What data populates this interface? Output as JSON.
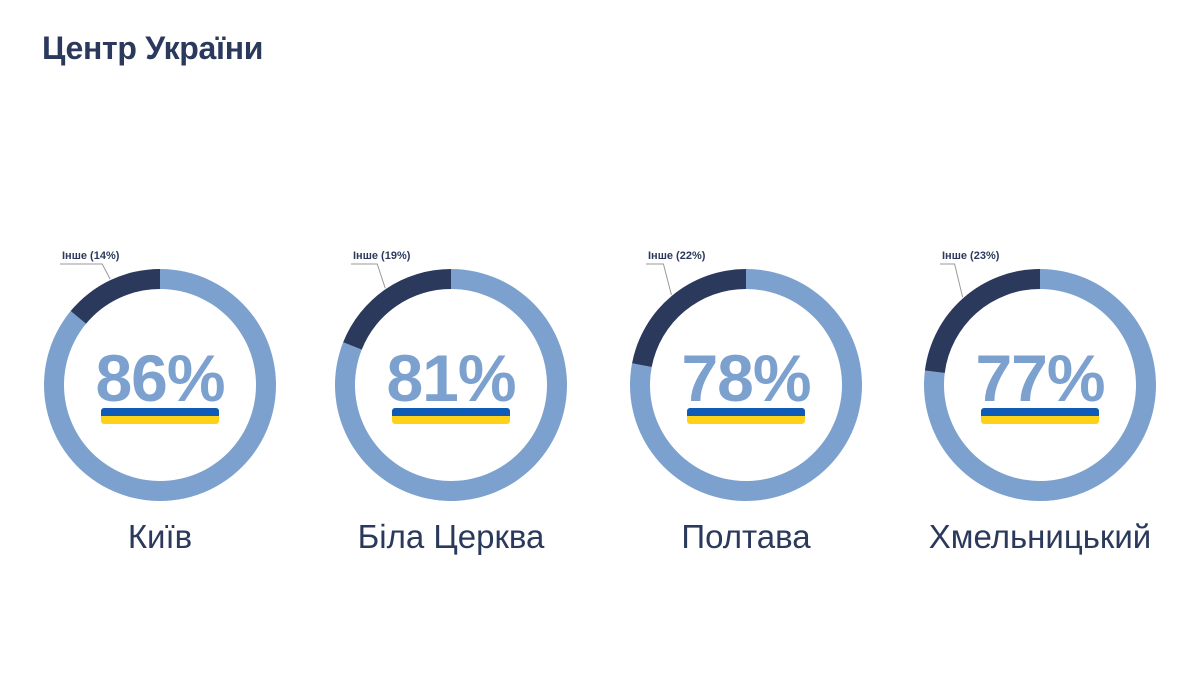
{
  "title": "Центр України",
  "colors": {
    "main": "#7da1ce",
    "other": "#2b3a5c",
    "flag_blue": "#0f5bb5",
    "flag_yellow": "#ffd21a",
    "title": "#2b3a5c"
  },
  "chart_data": [
    {
      "type": "pie",
      "city": "Київ",
      "slices": [
        {
          "label": "",
          "value": 86
        },
        {
          "label": "Інше (14%)",
          "value": 14
        }
      ],
      "center_label": "86%",
      "other_label": "Інше (14%)"
    },
    {
      "type": "pie",
      "city": "Біла Церква",
      "slices": [
        {
          "label": "",
          "value": 81
        },
        {
          "label": "Інше (19%)",
          "value": 19
        }
      ],
      "center_label": "81%",
      "other_label": "Інше (19%)"
    },
    {
      "type": "pie",
      "city": "Полтава",
      "slices": [
        {
          "label": "",
          "value": 78
        },
        {
          "label": "Інше (22%)",
          "value": 22
        }
      ],
      "center_label": "78%",
      "other_label": "Інше (22%)"
    },
    {
      "type": "pie",
      "city": "Хмельницький",
      "slices": [
        {
          "label": "",
          "value": 77
        },
        {
          "label": "Інше (23%)",
          "value": 23
        }
      ],
      "center_label": "77%",
      "other_label": "Інше (23%)"
    }
  ]
}
